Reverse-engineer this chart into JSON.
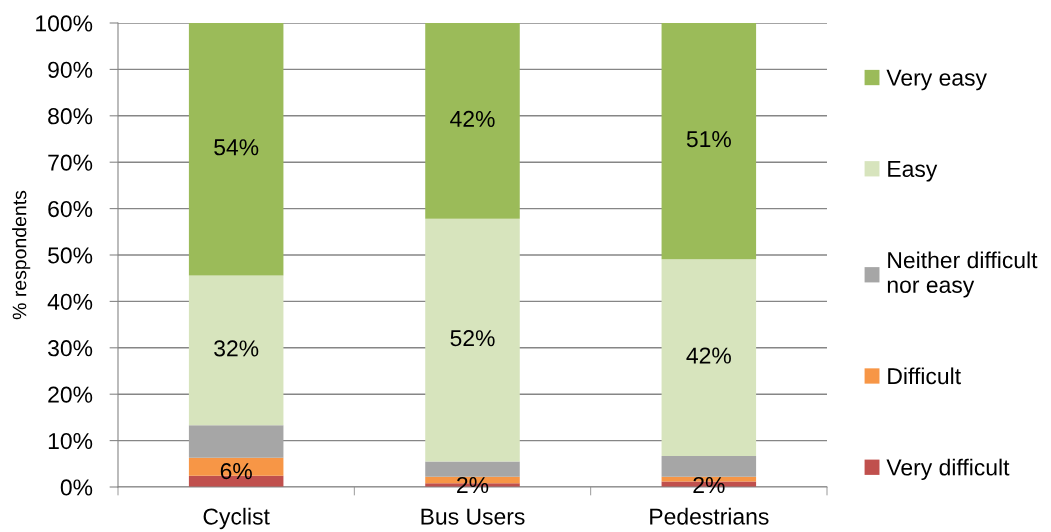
{
  "chart_data": {
    "type": "bar",
    "stacked": true,
    "categories": [
      "Cyclist",
      "Bus Users",
      "Pedestrians"
    ],
    "ylabel": "% respondents",
    "ylim": [
      0,
      100
    ],
    "yticks": [
      {
        "value": 0,
        "label": "0%"
      },
      {
        "value": 10,
        "label": "10%"
      },
      {
        "value": 20,
        "label": "20%"
      },
      {
        "value": 30,
        "label": "30%"
      },
      {
        "value": 40,
        "label": "40%"
      },
      {
        "value": 50,
        "label": "50%"
      },
      {
        "value": 60,
        "label": "60%"
      },
      {
        "value": 70,
        "label": "70%"
      },
      {
        "value": 80,
        "label": "80%"
      },
      {
        "value": 90,
        "label": "90%"
      },
      {
        "value": 100,
        "label": "100%"
      }
    ],
    "grid": "y",
    "legend": "right",
    "series": [
      {
        "name": "Very difficult",
        "color": "#c0504d",
        "values": [
          2.4,
          0.8,
          1.2
        ]
      },
      {
        "name": "Difficult",
        "color": "#f79646",
        "values": [
          3.9,
          1.4,
          1.0
        ]
      },
      {
        "name": "Neither difficult nor easy",
        "color": "#a6a6a6",
        "values": [
          7.0,
          3.3,
          4.5
        ]
      },
      {
        "name": "Easy",
        "color": "#d7e4bd",
        "values": [
          32.3,
          52.3,
          42.4
        ],
        "value_labels": [
          "32%",
          "52%",
          "42%"
        ]
      },
      {
        "name": "Very easy",
        "color": "#9bbb59",
        "values": [
          54.4,
          42.2,
          50.9
        ],
        "value_labels": [
          "54%",
          "42%",
          "51%"
        ]
      }
    ],
    "annotations": [
      {
        "text": "6%",
        "x": "Cyclist",
        "y": 3
      },
      {
        "text": "2%",
        "x": "Bus Users",
        "y": 0
      },
      {
        "text": "2%",
        "x": "Pedestrians",
        "y": 0
      }
    ]
  }
}
